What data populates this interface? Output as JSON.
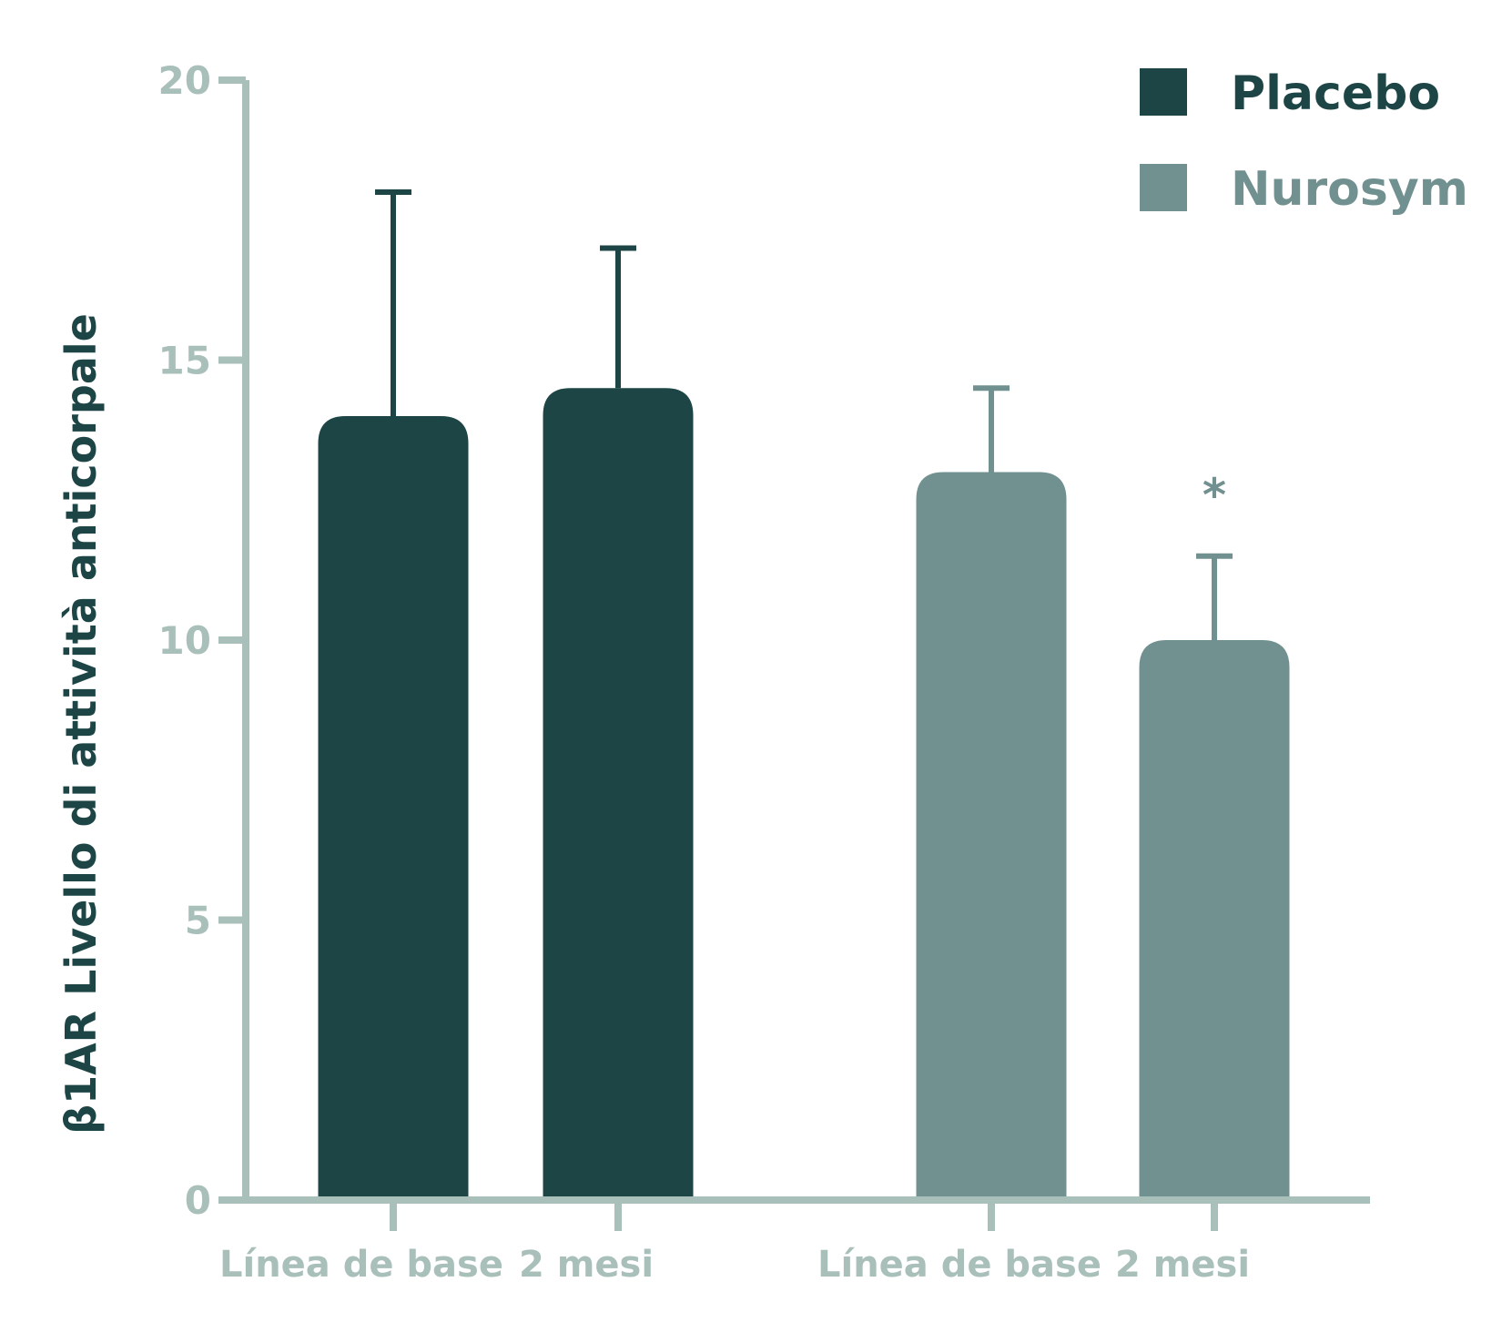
{
  "chart_data": {
    "type": "bar",
    "ylabel": "β1AR Livello di attività anticorpale",
    "xlabel": "",
    "ylim": [
      0,
      20
    ],
    "yticks": [
      "0",
      "5",
      "10",
      "15",
      "20"
    ],
    "legend_position": "top-right",
    "grid": false,
    "series": [
      {
        "name": "Placebo",
        "color": "#1d4545",
        "bars": [
          {
            "category": "Línea de base",
            "value": 14.0,
            "error": 4.0,
            "annotation": ""
          },
          {
            "category": "2 mesi",
            "value": 14.5,
            "error": 2.5,
            "annotation": ""
          }
        ]
      },
      {
        "name": "Nurosym",
        "color": "#719090",
        "bars": [
          {
            "category": "Línea de base",
            "value": 13.0,
            "error": 1.5,
            "annotation": ""
          },
          {
            "category": "2 mesi",
            "value": 10.0,
            "error": 1.5,
            "annotation": "*"
          }
        ]
      }
    ]
  },
  "colors": {
    "axis": "#a9bfba",
    "tick_label": "#a9bfba",
    "ylabel": "#1d4545"
  }
}
